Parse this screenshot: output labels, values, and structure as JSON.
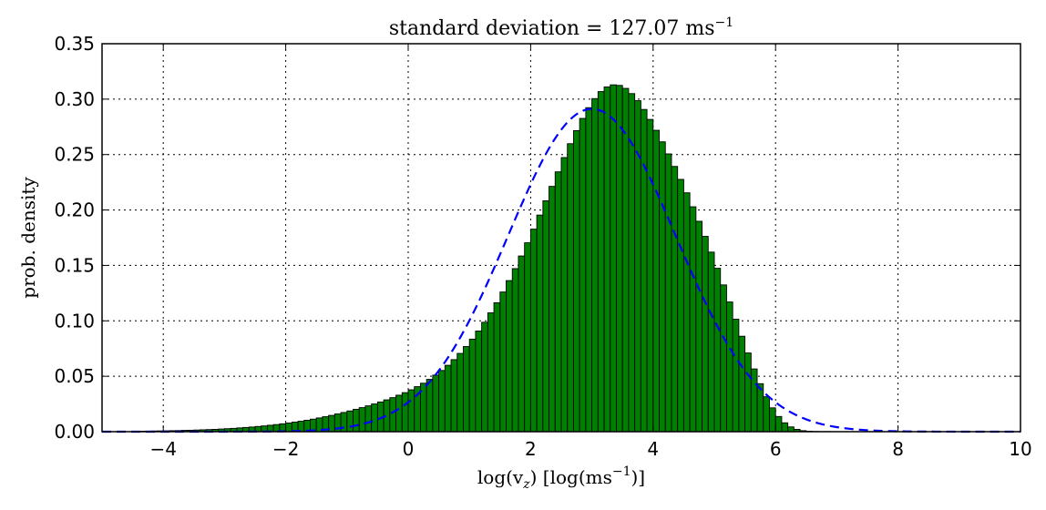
{
  "chart_data": {
    "type": "bar",
    "title": "standard deviation = 127.07 ms",
    "title_superscript": "−1",
    "xlabel_main": "log(v",
    "xlabel_sub": "z",
    "xlabel_mid": ") [log(ms",
    "xlabel_sup": "−1",
    "xlabel_end": ")]",
    "ylabel": "prob. density",
    "xlim": [
      -5,
      10
    ],
    "ylim": [
      0,
      0.35
    ],
    "xticks": [
      -4,
      -2,
      0,
      2,
      4,
      6,
      8,
      10
    ],
    "xtick_labels": [
      "−4",
      "−2",
      "0",
      "2",
      "4",
      "6",
      "8",
      "10"
    ],
    "yticks": [
      0,
      0.05,
      0.1,
      0.15,
      0.2,
      0.25,
      0.3,
      0.35
    ],
    "ytick_labels": [
      "0.00",
      "0.05",
      "0.10",
      "0.15",
      "0.20",
      "0.25",
      "0.30",
      "0.35"
    ],
    "grid": true,
    "bar_color": "#008000",
    "bar_edge_color": "#000000",
    "line_color": "#0000ff",
    "histogram": {
      "bin_width": 0.1,
      "x": [
        -4.5,
        -4.4,
        -4.3,
        -4.2,
        -4.1,
        -4.0,
        -3.9,
        -3.8,
        -3.7,
        -3.6,
        -3.5,
        -3.4,
        -3.3,
        -3.2,
        -3.1,
        -3.0,
        -2.9,
        -2.8,
        -2.7,
        -2.6,
        -2.5,
        -2.4,
        -2.3,
        -2.2,
        -2.1,
        -2.0,
        -1.9,
        -1.8,
        -1.7,
        -1.6,
        -1.5,
        -1.4,
        -1.3,
        -1.2,
        -1.1,
        -1.0,
        -0.9,
        -0.8,
        -0.7,
        -0.6,
        -0.5,
        -0.4,
        -0.3,
        -0.2,
        -0.1,
        0.0,
        0.1,
        0.2,
        0.3,
        0.4,
        0.5,
        0.6,
        0.7,
        0.8,
        0.9,
        1.0,
        1.1,
        1.2,
        1.3,
        1.4,
        1.5,
        1.6,
        1.7,
        1.8,
        1.9,
        2.0,
        2.1,
        2.2,
        2.3,
        2.4,
        2.5,
        2.6,
        2.7,
        2.8,
        2.9,
        3.0,
        3.1,
        3.2,
        3.3,
        3.4,
        3.5,
        3.6,
        3.7,
        3.8,
        3.9,
        4.0,
        4.1,
        4.2,
        4.3,
        4.4,
        4.5,
        4.6,
        4.7,
        4.8,
        4.9,
        5.0,
        5.1,
        5.2,
        5.3,
        5.4,
        5.5,
        5.6,
        5.7,
        5.8,
        5.9,
        6.0,
        6.1,
        6.2,
        6.3,
        6.4,
        6.5,
        6.6,
        6.7,
        6.8,
        6.9,
        7.0,
        7.1,
        7.2,
        7.3,
        7.4,
        7.5,
        7.6,
        7.7,
        7.8,
        7.9
      ],
      "density": [
        0.0003,
        0.0004,
        0.0005,
        0.0006,
        0.0007,
        0.0008,
        0.0009,
        0.001,
        0.0012,
        0.0013,
        0.0015,
        0.0017,
        0.0019,
        0.0021,
        0.0024,
        0.0027,
        0.003,
        0.0034,
        0.0038,
        0.0042,
        0.0047,
        0.0052,
        0.0058,
        0.0064,
        0.0071,
        0.0078,
        0.0086,
        0.0094,
        0.0103,
        0.0113,
        0.0124,
        0.0135,
        0.0147,
        0.016,
        0.0173,
        0.0187,
        0.0202,
        0.0217,
        0.0233,
        0.025,
        0.0268,
        0.0287,
        0.0307,
        0.0329,
        0.0352,
        0.0378,
        0.0406,
        0.0437,
        0.0472,
        0.051,
        0.0552,
        0.0599,
        0.065,
        0.0706,
        0.0768,
        0.0835,
        0.0908,
        0.0987,
        0.1072,
        0.1163,
        0.126,
        0.1363,
        0.1471,
        0.1585,
        0.1704,
        0.1827,
        0.1954,
        0.2083,
        0.2213,
        0.2344,
        0.2473,
        0.2598,
        0.2716,
        0.2826,
        0.2923,
        0.3005,
        0.3068,
        0.311,
        0.3129,
        0.3124,
        0.3097,
        0.305,
        0.2986,
        0.2907,
        0.2817,
        0.2719,
        0.2615,
        0.2506,
        0.2393,
        0.2276,
        0.2155,
        0.2029,
        0.1898,
        0.1762,
        0.162,
        0.1474,
        0.1324,
        0.117,
        0.1015,
        0.0861,
        0.071,
        0.0566,
        0.0433,
        0.0315,
        0.0215,
        0.0137,
        0.008,
        0.0043,
        0.0021,
        0.0009,
        0.0004,
        0.0002,
        0.0001,
        0.0001,
        0,
        0,
        0,
        0,
        0,
        0,
        0,
        0,
        0,
        0,
        0
      ]
    },
    "normal_fit": {
      "mean": 3.0,
      "std": 1.37,
      "style": "dashed"
    }
  }
}
